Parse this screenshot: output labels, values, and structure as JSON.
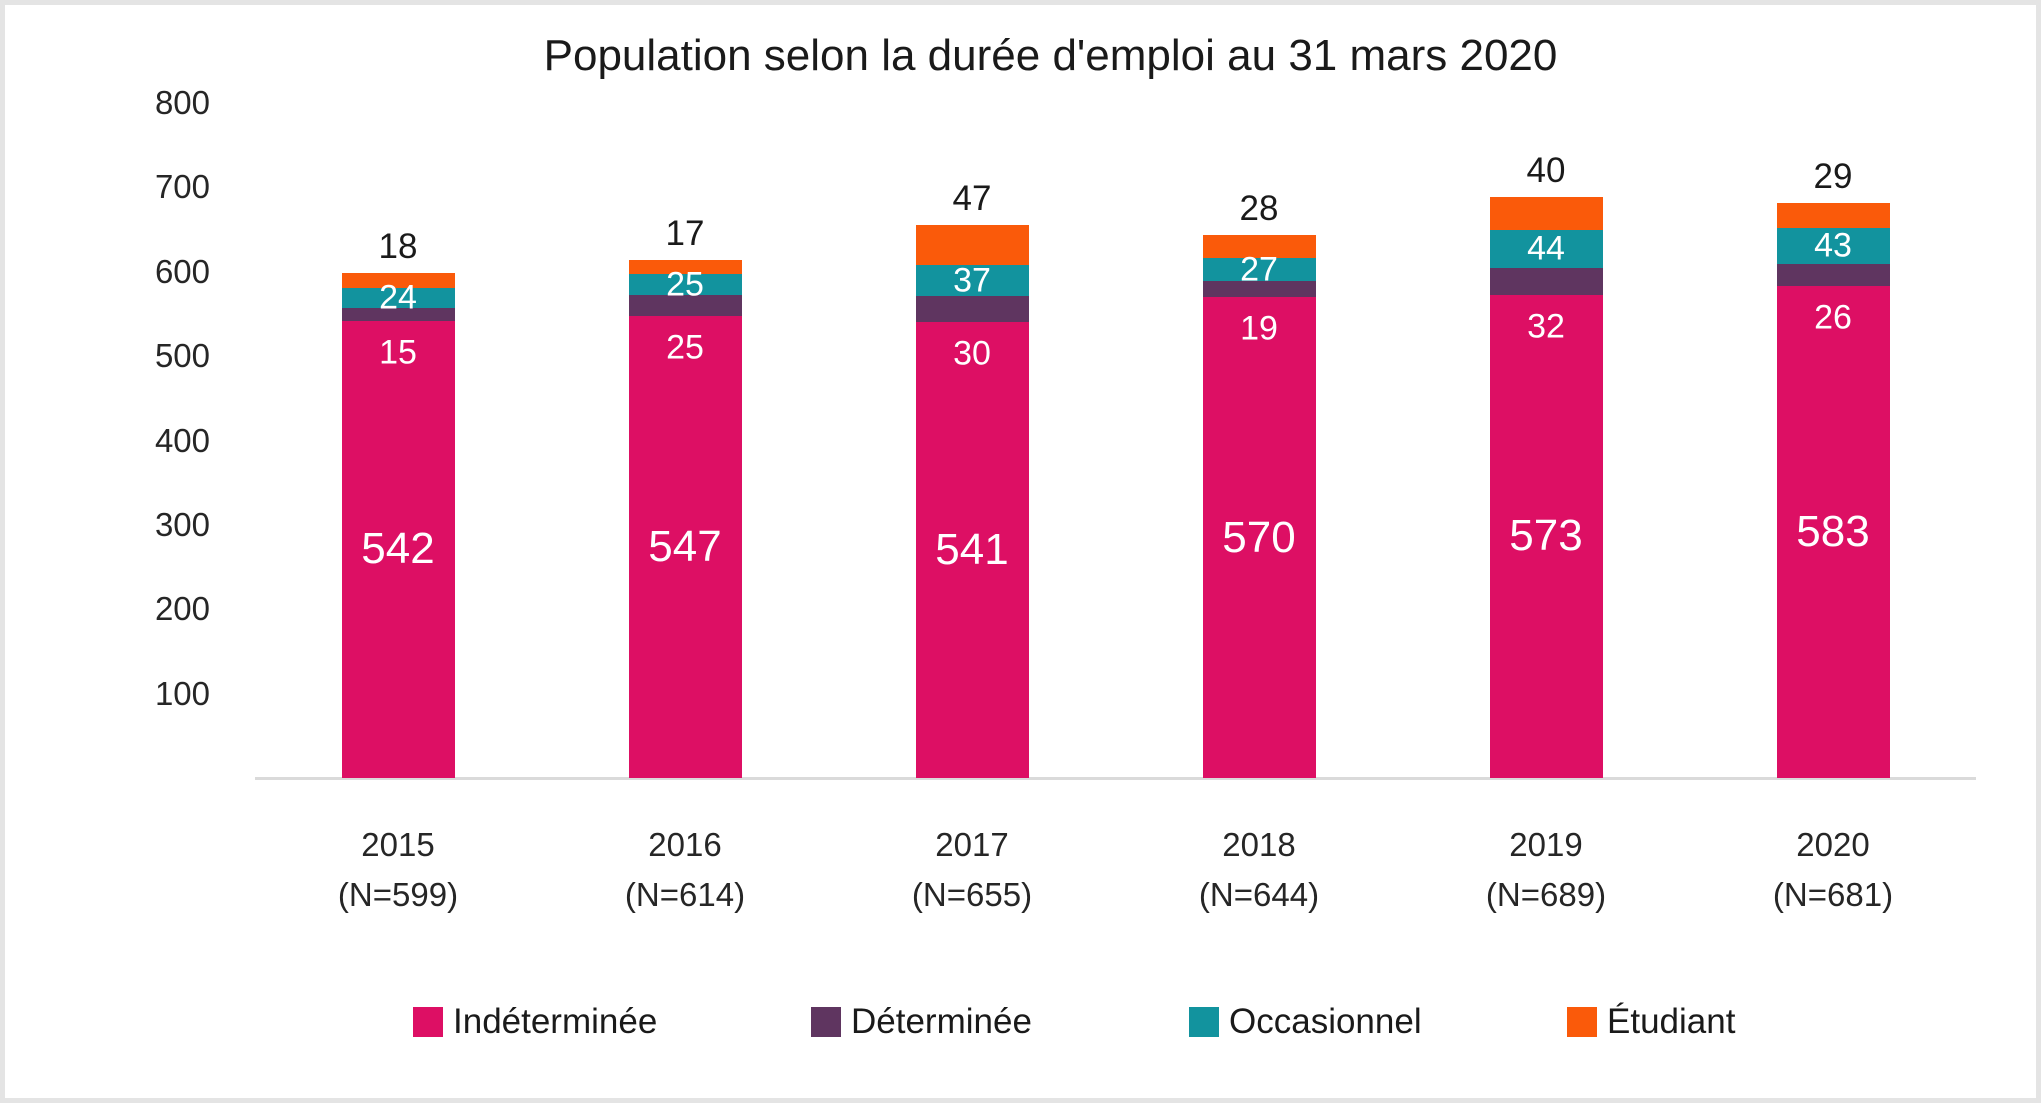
{
  "chart_data": {
    "type": "bar",
    "stacked": true,
    "title": "Population selon la durée d'emploi au 31 mars 2020",
    "categories": [
      "2015",
      "2016",
      "2017",
      "2018",
      "2019",
      "2020"
    ],
    "category_sublabels": [
      "(N=599)",
      "(N=614)",
      "(N=655)",
      "(N=644)",
      "(N=689)",
      "(N=681)"
    ],
    "series": [
      {
        "name": "Indéterminée",
        "color": "#dd0f64",
        "values": [
          542,
          547,
          541,
          570,
          573,
          583
        ]
      },
      {
        "name": "Déterminée",
        "color": "#5f3560",
        "values": [
          15,
          25,
          30,
          19,
          32,
          26
        ]
      },
      {
        "name": "Occasionnel",
        "color": "#12939e",
        "values": [
          24,
          25,
          37,
          27,
          44,
          43
        ]
      },
      {
        "name": "Étudiant",
        "color": "#fa5a0a",
        "values": [
          18,
          17,
          47,
          28,
          40,
          29
        ]
      }
    ],
    "totals": [
      599,
      614,
      655,
      644,
      689,
      681
    ],
    "ylim": [
      0,
      800
    ],
    "yticks": [
      100,
      200,
      300,
      400,
      500,
      600,
      700,
      800
    ],
    "grid": false,
    "legend_position": "bottom",
    "axis_line_color": "#dadada"
  }
}
